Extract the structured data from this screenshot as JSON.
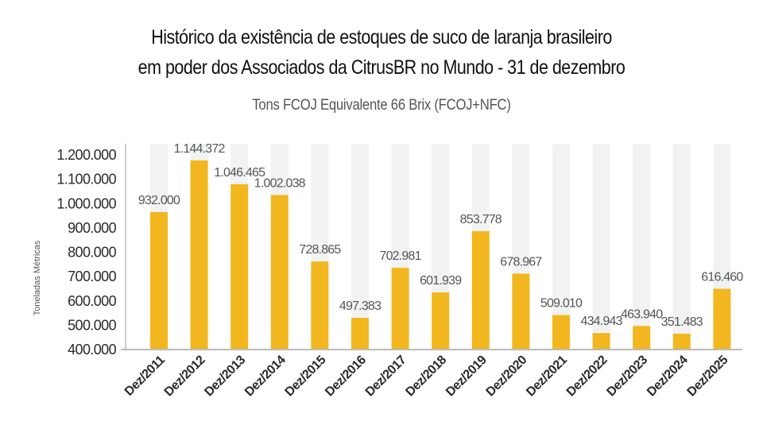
{
  "chart_data": {
    "type": "bar",
    "title": "Histórico da existência de estoques de suco de laranja brasileiro em poder dos Associados da CitrusBR no Mundo - 31 de dezembro",
    "title_lines": [
      "Histórico da existência de estoques de suco de laranja brasileiro",
      "em poder dos Associados da CitrusBR no Mundo - 31 de dezembro"
    ],
    "subtitle": "Tons FCOJ Equivalente 66 Brix (FCOJ+NFC)",
    "xlabel": "",
    "ylabel": "Toneladas Métricas",
    "ylim": [
      400000,
      1200000
    ],
    "yticks": [
      400000,
      500000,
      600000,
      700000,
      800000,
      900000,
      1000000,
      1100000,
      1200000
    ],
    "ytick_labels": [
      "400.000",
      "500.000",
      "600.000",
      "700.000",
      "800.000",
      "900.000",
      "1.000.000",
      "1.100.000",
      "1.200.000"
    ],
    "categories": [
      "Dez/2011",
      "Dez/2012",
      "Dez/2013",
      "Dez/2014",
      "Dez/2015",
      "Dez/2016",
      "Dez/2017",
      "Dez/2018",
      "Dez/2019",
      "Dez/2020",
      "Dez/2021",
      "Dez/2022",
      "Dez/2023",
      "Dez/2024",
      "Dez/2025"
    ],
    "values": [
      932000,
      1144372,
      1046465,
      1002038,
      728865,
      497383,
      702981,
      601939,
      853778,
      678967,
      509010,
      434943,
      463940,
      351483,
      616460
    ],
    "value_labels": [
      "932.000",
      "1.144.372",
      "1.046.465",
      "1.002.038",
      "728.865",
      "497.383",
      "702.981",
      "601.939",
      "853.778",
      "678.967",
      "509.010",
      "434.943",
      "463.940",
      "351.483",
      "616.460"
    ],
    "grid": false,
    "legend": "none",
    "colors": {
      "bar": "#F2B71F",
      "bar_background": "#F1F2F2",
      "axis": "#BBBBBB",
      "title": "#111111",
      "subtitle": "#555555",
      "data_label": "#555555"
    }
  }
}
